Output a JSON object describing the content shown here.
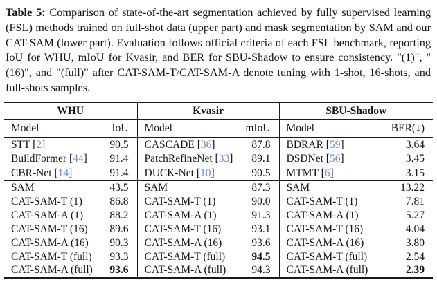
{
  "caption": {
    "label": "Table 5:",
    "body": " Comparison of state-of-the-art segmentation achieved by fully supervised learning (FSL) methods trained on full-shot data (upper part) and mask segmentation by SAM and our CAT-SAM (lower part). Evaluation follows official criteria of each FSL benchmark, reporting IoU for WHU, mIoU for Kvasir, and BER for SBU-Shadow to ensure consistency. \"(1)\", \"(16)\", and \"(full)\" after CAT-SAM-T/CAT-SAM-A denote tuning with 1-shot, 16-shots, and full-shots samples."
  },
  "table": {
    "groups": [
      {
        "title": "WHU",
        "model_header": "Model",
        "metric_header": "IoU"
      },
      {
        "title": "Kvasir",
        "model_header": "Model",
        "metric_header": "mIoU"
      },
      {
        "title": "SBU-Shadow",
        "model_header": "Model",
        "metric_header": "BER(↓)"
      }
    ],
    "upper_rows": [
      [
        {
          "model": "STT",
          "cite": "2",
          "value": "90.5"
        },
        {
          "model": "CASCADE",
          "cite": "36",
          "value": "87.8"
        },
        {
          "model": "BDRAR",
          "cite": "59",
          "value": "3.64"
        }
      ],
      [
        {
          "model": "BuildFormer",
          "cite": "44",
          "value": "91.4"
        },
        {
          "model": "PatchRefineNet",
          "cite": "33",
          "value": "89.1"
        },
        {
          "model": "DSDNet",
          "cite": "56",
          "value": "3.45"
        }
      ],
      [
        {
          "model": "CBR-Net",
          "cite": "14",
          "value": "91.4"
        },
        {
          "model": "DUCK-Net",
          "cite": "10",
          "value": "90.5"
        },
        {
          "model": "MTMT",
          "cite": "6",
          "value": "3.15"
        }
      ]
    ],
    "lower_rows": [
      [
        {
          "model": "SAM",
          "value": "43.5"
        },
        {
          "model": "SAM",
          "value": "87.3"
        },
        {
          "model": "SAM",
          "value": "13.22"
        }
      ],
      [
        {
          "model": "CAT-SAM-T (1)",
          "value": "86.8"
        },
        {
          "model": "CAT-SAM-T (1)",
          "value": "90.0"
        },
        {
          "model": "CAT-SAM-T (1)",
          "value": "7.81"
        }
      ],
      [
        {
          "model": "CAT-SAM-A (1)",
          "value": "88.2"
        },
        {
          "model": "CAT-SAM-A (1)",
          "value": "91.3"
        },
        {
          "model": "CAT-SAM-A (1)",
          "value": "5.27"
        }
      ],
      [
        {
          "model": "CAT-SAM-T (16)",
          "value": "89.6"
        },
        {
          "model": "CAT-SAM-T (16)",
          "value": "93.1"
        },
        {
          "model": "CAT-SAM-T (16)",
          "value": "4.04"
        }
      ],
      [
        {
          "model": "CAT-SAM-A (16)",
          "value": "90.3"
        },
        {
          "model": "CAT-SAM-A (16)",
          "value": "93.6"
        },
        {
          "model": "CAT-SAM-A (16)",
          "value": "3.80"
        }
      ],
      [
        {
          "model": "CAT-SAM-T (full)",
          "value": "93.3"
        },
        {
          "model": "CAT-SAM-T (full)",
          "value": "94.5",
          "bold": true
        },
        {
          "model": "CAT-SAM-T (full)",
          "value": "2.54"
        }
      ],
      [
        {
          "model": "CAT-SAM-A (full)",
          "value": "93.6",
          "bold": true
        },
        {
          "model": "CAT-SAM-A (full)",
          "value": "94.3"
        },
        {
          "model": "CAT-SAM-A (full)",
          "value": "2.39",
          "bold": true
        }
      ]
    ],
    "colors": {
      "citation": "#6d8dd1",
      "text": "#141414",
      "rule": "#1a1a1a",
      "background": "#ffffff"
    }
  }
}
